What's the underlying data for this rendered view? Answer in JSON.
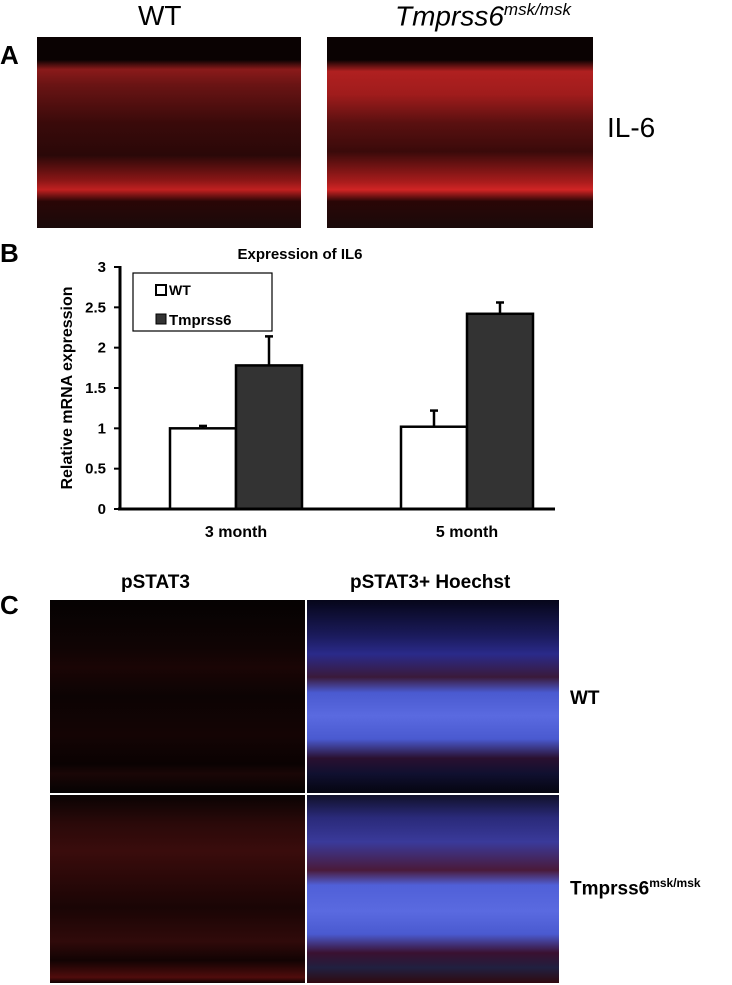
{
  "panelA": {
    "label": "A",
    "col_wt": "WT",
    "col_mut_base": "Tmprss6",
    "col_mut_sup": "msk/msk",
    "row_label": "IL-6"
  },
  "panelB": {
    "label": "B"
  },
  "panelC": {
    "label": "C",
    "col1": "pSTAT3",
    "col2": "pSTAT3+ Hoechst",
    "row_wt": "WT",
    "row_mut_base": "Tmprss6",
    "row_mut_sup": "msk/msk"
  },
  "chart_data": {
    "type": "bar",
    "title": "Expression of IL6",
    "xlabel": "",
    "ylabel": "Relative mRNA  expression",
    "ylim": [
      0,
      3
    ],
    "yticks": [
      "0",
      "0.5",
      "1",
      "1.5",
      "2",
      "2.5",
      "3"
    ],
    "categories": [
      "3 month",
      "5 month"
    ],
    "series": [
      {
        "name": "WT",
        "values": [
          1.0,
          1.02
        ],
        "errors": [
          0.03,
          0.2
        ],
        "color": "#ffffff"
      },
      {
        "name": "Tmprss6",
        "values": [
          1.78,
          2.42
        ],
        "errors": [
          0.36,
          0.14
        ],
        "color": "#333333"
      }
    ],
    "legend_position": "top-left"
  }
}
